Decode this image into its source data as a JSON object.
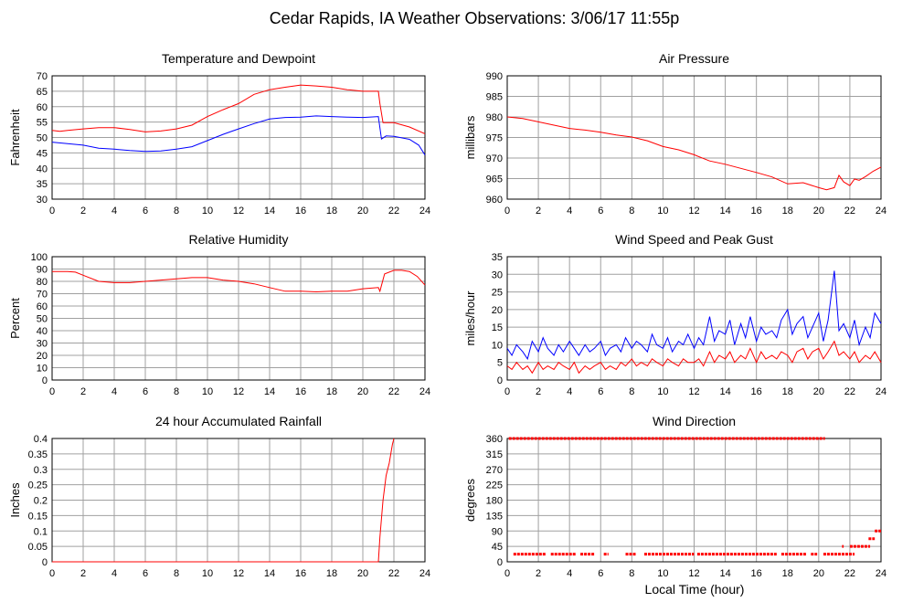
{
  "page": {
    "title": "Cedar Rapids, IA Weather Observations: 3/06/17 11:55p",
    "xlabel": "Local Time (hour)"
  },
  "colors": {
    "red": "#ff0000",
    "blue": "#0000ff",
    "grid": "#a0a0a0",
    "axis": "#000000"
  },
  "chart_data": [
    {
      "id": "temp",
      "type": "line",
      "title": "Temperature and Dewpoint",
      "ylabel": "Fahrenheit",
      "xlim": [
        0,
        24
      ],
      "ylim": [
        30,
        70
      ],
      "grid": true,
      "x_ticks": [
        0,
        2,
        4,
        6,
        8,
        10,
        12,
        14,
        16,
        18,
        20,
        22,
        24
      ],
      "y_ticks": [
        30,
        35,
        40,
        45,
        50,
        55,
        60,
        65,
        70
      ],
      "series": [
        {
          "color": "#ff0000",
          "x": [
            0,
            0.5,
            1,
            2,
            3,
            4,
            5,
            6,
            7,
            8,
            9,
            10,
            11,
            12,
            13,
            14,
            15,
            16,
            17,
            18,
            19,
            20,
            21,
            21.1,
            21.3,
            22,
            23,
            24
          ],
          "y": [
            52.3,
            52,
            52.3,
            52.8,
            53.2,
            53.2,
            52.6,
            51.8,
            52.1,
            52.8,
            54,
            56.8,
            59,
            61,
            64,
            65.5,
            66.3,
            67,
            66.7,
            66.3,
            65.5,
            65,
            65,
            61,
            54.8,
            54.8,
            53.4,
            51.2
          ]
        },
        {
          "color": "#0000ff",
          "x": [
            0,
            1,
            2,
            3,
            4,
            5,
            6,
            7,
            8,
            9,
            10,
            11,
            12,
            13,
            14,
            15,
            16,
            17,
            18,
            19,
            20,
            21,
            21.2,
            21.5,
            22,
            23,
            23.6,
            24
          ],
          "y": [
            48.5,
            48,
            47.5,
            46.5,
            46.2,
            45.8,
            45.5,
            45.6,
            46.2,
            47,
            49,
            51,
            52.8,
            54.5,
            56,
            56.5,
            56.6,
            57,
            56.8,
            56.6,
            56.5,
            56.8,
            49.5,
            50.5,
            50.4,
            49.4,
            47.5,
            44.3
          ]
        }
      ]
    },
    {
      "id": "pressure",
      "type": "line",
      "title": "Air Pressure",
      "ylabel": "millibars",
      "xlim": [
        0,
        24
      ],
      "ylim": [
        960,
        990
      ],
      "grid": true,
      "x_ticks": [
        0,
        2,
        4,
        6,
        8,
        10,
        12,
        14,
        16,
        18,
        20,
        22,
        24
      ],
      "y_ticks": [
        960,
        965,
        970,
        975,
        980,
        985,
        990
      ],
      "series": [
        {
          "color": "#ff0000",
          "x": [
            0,
            1,
            2,
            3,
            4,
            5,
            6,
            7,
            8,
            9,
            10,
            11,
            12,
            13,
            14,
            15,
            16,
            17,
            18,
            19,
            20,
            20.5,
            21,
            21.3,
            21.6,
            22,
            22.3,
            22.6,
            23,
            23.5,
            24
          ],
          "y": [
            980,
            979.6,
            978.8,
            978,
            977.2,
            976.8,
            976.3,
            975.6,
            975.1,
            974.2,
            972.8,
            972,
            970.8,
            969.3,
            968.5,
            967.5,
            966.5,
            965.4,
            963.7,
            964,
            962.8,
            962.3,
            962.8,
            965.8,
            964.2,
            963.3,
            964.9,
            964.6,
            965.5,
            966.8,
            967.8
          ]
        }
      ]
    },
    {
      "id": "humidity",
      "type": "line",
      "title": "Relative Humidity",
      "ylabel": "Percent",
      "xlim": [
        0,
        24
      ],
      "ylim": [
        0,
        100
      ],
      "grid": true,
      "x_ticks": [
        0,
        2,
        4,
        6,
        8,
        10,
        12,
        14,
        16,
        18,
        20,
        22,
        24
      ],
      "y_ticks": [
        0,
        10,
        20,
        30,
        40,
        50,
        60,
        70,
        80,
        90,
        100
      ],
      "series": [
        {
          "color": "#ff0000",
          "x": [
            0,
            1,
            1.5,
            2,
            3,
            4,
            5,
            6,
            7,
            8,
            9,
            10,
            11,
            12,
            13,
            14,
            15,
            16,
            17,
            18,
            19,
            20,
            21,
            21.1,
            21.4,
            22,
            22.5,
            23,
            23.5,
            24
          ],
          "y": [
            88,
            88,
            87.5,
            85,
            80,
            79,
            79,
            80,
            81,
            82,
            83,
            83,
            81,
            80,
            78,
            75,
            72,
            72,
            71.5,
            72,
            72,
            74,
            75,
            72,
            86,
            89,
            89,
            88,
            84,
            77
          ]
        }
      ]
    },
    {
      "id": "wind",
      "type": "line",
      "title": "Wind Speed and Peak Gust",
      "ylabel": "miles/hour",
      "xlim": [
        0,
        24
      ],
      "ylim": [
        0,
        35
      ],
      "grid": true,
      "x_ticks": [
        0,
        2,
        4,
        6,
        8,
        10,
        12,
        14,
        16,
        18,
        20,
        22,
        24
      ],
      "y_ticks": [
        0,
        5,
        10,
        15,
        20,
        25,
        30,
        35
      ],
      "series": [
        {
          "color": "#0000ff",
          "x": [
            0,
            0.3,
            0.6,
            1,
            1.3,
            1.6,
            2,
            2.3,
            2.6,
            3,
            3.3,
            3.6,
            4,
            4.3,
            4.6,
            5,
            5.3,
            5.6,
            6,
            6.3,
            6.6,
            7,
            7.3,
            7.6,
            8,
            8.3,
            8.6,
            9,
            9.3,
            9.6,
            10,
            10.3,
            10.6,
            11,
            11.3,
            11.6,
            12,
            12.3,
            12.6,
            13,
            13.3,
            13.6,
            14,
            14.3,
            14.6,
            15,
            15.3,
            15.6,
            16,
            16.3,
            16.6,
            17,
            17.3,
            17.6,
            18,
            18.3,
            18.6,
            19,
            19.3,
            19.6,
            20,
            20.3,
            20.6,
            21,
            21.3,
            21.6,
            22,
            22.3,
            22.6,
            23,
            23.3,
            23.6,
            24
          ],
          "y": [
            9,
            7,
            10,
            8,
            6,
            11,
            8,
            12,
            9,
            7,
            10,
            8,
            11,
            9,
            7,
            10,
            8,
            9,
            11,
            7,
            9,
            10,
            8,
            12,
            9,
            11,
            10,
            8,
            13,
            10,
            9,
            12,
            8,
            11,
            10,
            13,
            9,
            12,
            10,
            18,
            11,
            14,
            13,
            17,
            10,
            16,
            12,
            18,
            11,
            15,
            13,
            14,
            12,
            17,
            20,
            13,
            16,
            18,
            12,
            15,
            19,
            11,
            17,
            31,
            14,
            16,
            12,
            17,
            10,
            15,
            12,
            19,
            16
          ]
        },
        {
          "color": "#ff0000",
          "x": [
            0,
            0.3,
            0.6,
            1,
            1.3,
            1.6,
            2,
            2.3,
            2.6,
            3,
            3.3,
            3.6,
            4,
            4.3,
            4.6,
            5,
            5.3,
            5.6,
            6,
            6.3,
            6.6,
            7,
            7.3,
            7.6,
            8,
            8.3,
            8.6,
            9,
            9.3,
            9.6,
            10,
            10.3,
            10.6,
            11,
            11.3,
            11.6,
            12,
            12.3,
            12.6,
            13,
            13.3,
            13.6,
            14,
            14.3,
            14.6,
            15,
            15.3,
            15.6,
            16,
            16.3,
            16.6,
            17,
            17.3,
            17.6,
            18,
            18.3,
            18.6,
            19,
            19.3,
            19.6,
            20,
            20.3,
            20.6,
            21,
            21.3,
            21.6,
            22,
            22.3,
            22.6,
            23,
            23.3,
            23.6,
            24
          ],
          "y": [
            4,
            3,
            5,
            3,
            4,
            2,
            5,
            3,
            4,
            3,
            5,
            4,
            3,
            5,
            2,
            4,
            3,
            4,
            5,
            3,
            4,
            3,
            5,
            4,
            6,
            4,
            5,
            4,
            6,
            5,
            4,
            6,
            5,
            4,
            6,
            5,
            5,
            6,
            4,
            8,
            5,
            7,
            6,
            8,
            5,
            7,
            6,
            9,
            5,
            8,
            6,
            7,
            6,
            8,
            7,
            5,
            8,
            9,
            6,
            8,
            9,
            6,
            8,
            11,
            7,
            8,
            6,
            8,
            5,
            7,
            6,
            8,
            5
          ]
        }
      ]
    },
    {
      "id": "rain",
      "type": "line",
      "title": "24 hour Accumulated Rainfall",
      "ylabel": "Inches",
      "xlim": [
        0,
        24
      ],
      "ylim": [
        0,
        0.4
      ],
      "grid": true,
      "x_ticks": [
        0,
        2,
        4,
        6,
        8,
        10,
        12,
        14,
        16,
        18,
        20,
        22,
        24
      ],
      "y_ticks": [
        0,
        0.05,
        0.1,
        0.15,
        0.2,
        0.25,
        0.3,
        0.35,
        0.4
      ],
      "series": [
        {
          "color": "#ff0000",
          "x": [
            0,
            21,
            21.1,
            21.3,
            21.5,
            21.7,
            21.9,
            22
          ],
          "y": [
            0,
            0,
            0.08,
            0.2,
            0.28,
            0.32,
            0.38,
            0.4
          ]
        }
      ]
    },
    {
      "id": "direction",
      "type": "scatter",
      "title": "Wind Direction",
      "ylabel": "degrees",
      "xlim": [
        0,
        24
      ],
      "ylim": [
        0,
        360
      ],
      "grid": true,
      "x_ticks": [
        0,
        2,
        4,
        6,
        8,
        10,
        12,
        14,
        16,
        18,
        20,
        22,
        24
      ],
      "y_ticks": [
        0,
        45,
        90,
        135,
        180,
        225,
        270,
        315,
        360
      ],
      "series": [
        {
          "color": "#ff0000",
          "segments": [
            {
              "x0": 0.1,
              "x1": 20.4,
              "y": 360
            },
            {
              "x0": 0.4,
              "x1": 2.5,
              "y": 22.5
            },
            {
              "x0": 2.8,
              "x1": 4.4,
              "y": 22.5
            },
            {
              "x0": 4.7,
              "x1": 5.6,
              "y": 22.5
            },
            {
              "x0": 6.2,
              "x1": 6.5,
              "y": 22.5
            },
            {
              "x0": 7.6,
              "x1": 8.3,
              "y": 22.5
            },
            {
              "x0": 8.8,
              "x1": 12.0,
              "y": 22.5
            },
            {
              "x0": 12.2,
              "x1": 17.3,
              "y": 22.5
            },
            {
              "x0": 17.6,
              "x1": 19.2,
              "y": 22.5
            },
            {
              "x0": 19.5,
              "x1": 19.9,
              "y": 22.5
            },
            {
              "x0": 20.3,
              "x1": 22.3,
              "y": 22.5
            },
            {
              "x0": 21.5,
              "x1": 21.6,
              "y": 45
            },
            {
              "x0": 22.0,
              "x1": 23.3,
              "y": 45
            },
            {
              "x0": 23.2,
              "x1": 23.6,
              "y": 67.5
            },
            {
              "x0": 23.6,
              "x1": 24.0,
              "y": 90
            }
          ]
        }
      ]
    }
  ]
}
